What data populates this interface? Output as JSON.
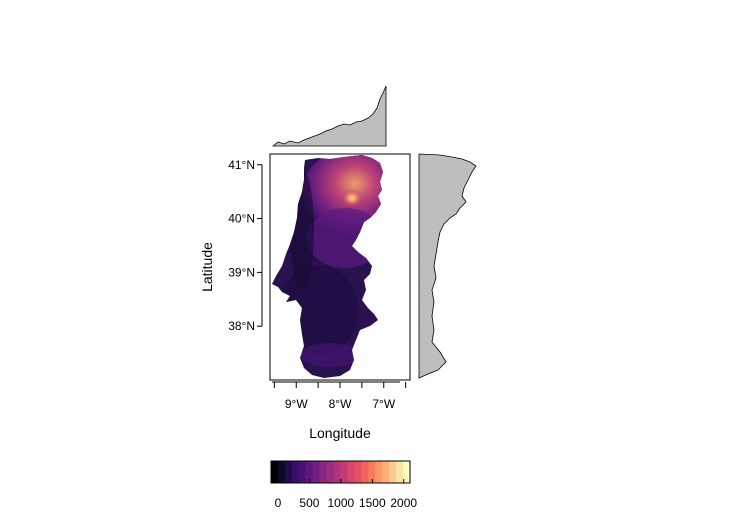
{
  "chart_data": {
    "type": "heatmap",
    "title": "",
    "xlabel": "Longitude",
    "ylabel": "Latitude",
    "x_tick_labels": [
      "9°W",
      "8°W",
      "7°W"
    ],
    "y_tick_labels": [
      "41°N",
      "40°N",
      "39°N",
      "38°N"
    ],
    "x_ticks": [
      -9,
      -8,
      -7
    ],
    "y_ticks": [
      41,
      40,
      39,
      38
    ],
    "xlim": [
      -9.6,
      -6.4
    ],
    "ylim": [
      37.0,
      41.2
    ],
    "colorbar": {
      "tick_labels": [
        "0",
        "500",
        "1000",
        "1500",
        "2000"
      ],
      "ticks": [
        0,
        500,
        1000,
        1500,
        2000
      ],
      "range": [
        0,
        2100
      ],
      "palette": [
        "#000004",
        "#0d0829",
        "#1f0c48",
        "#36106b",
        "#4b1378",
        "#5f187f",
        "#721f81",
        "#862781",
        "#9a2f7e",
        "#ae347b",
        "#c33b75",
        "#d6456c",
        "#e65163",
        "#f2635c",
        "#f9795d",
        "#fd9567",
        "#feaf77",
        "#fec98d",
        "#fde3a6",
        "#fcfdbf"
      ]
    },
    "marginals": {
      "top": "elevation profile by longitude",
      "right": "elevation profile by latitude"
    },
    "grid": false
  }
}
